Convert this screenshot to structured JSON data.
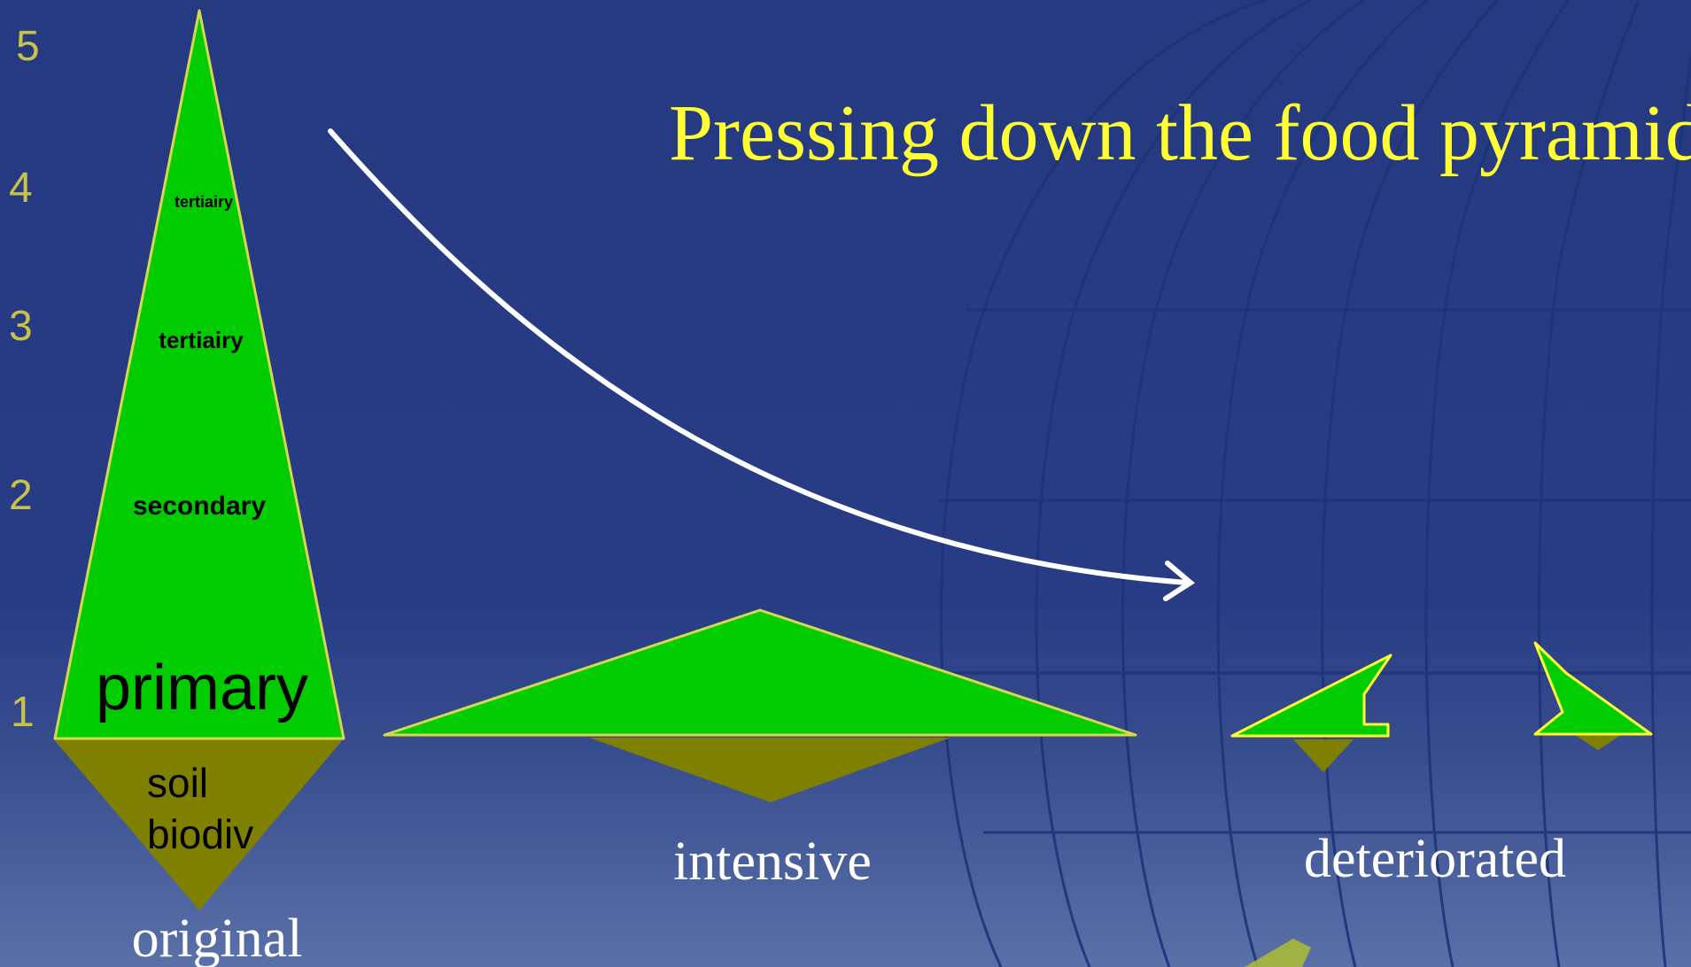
{
  "title": "Pressing down the food pyramide",
  "axis_levels": [
    "5",
    "4",
    "3",
    "2",
    "1"
  ],
  "original": {
    "caption": "original",
    "levels": {
      "level4": "tertiairy",
      "level3": "tertiairy",
      "level2": "secondary",
      "level1": "primary"
    },
    "soil": [
      "soil",
      "biodiv"
    ]
  },
  "intensive": {
    "caption": "intensive"
  },
  "deteriorated": {
    "caption": "deteriorated"
  },
  "colors": {
    "background": "#273c84",
    "pyramid_fill": "#00cc00",
    "pyramid_outline": "#d8d850",
    "soil_fill": "#808000",
    "title_color": "#ffff33",
    "axis_color": "#c9c24a",
    "arrow_color": "#ffffff"
  }
}
